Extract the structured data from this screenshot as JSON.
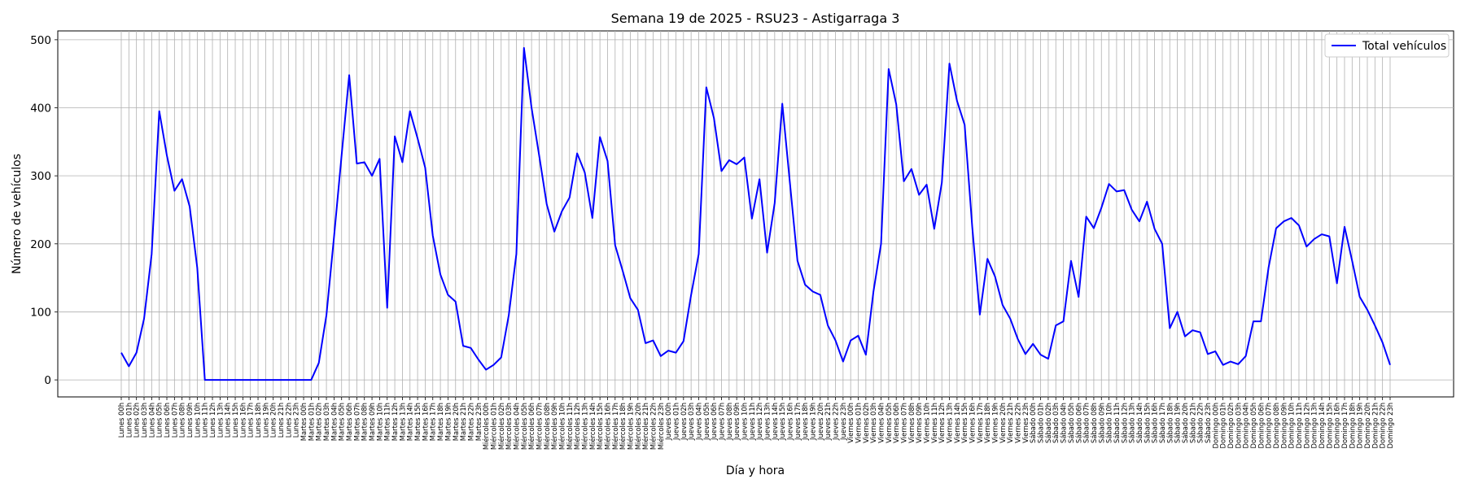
{
  "chart_data": {
    "type": "line",
    "title": "Semana 19 de 2025 - RSU23 - Astigarraga 3",
    "xlabel": "Día y hora",
    "ylabel": "Número de vehículos",
    "ylim": [
      -25,
      513
    ],
    "yticks": [
      0,
      100,
      200,
      300,
      400,
      500
    ],
    "grid": true,
    "legend_position": "top-right",
    "days": [
      "Lunes",
      "Martes",
      "Miércoles",
      "Jueves",
      "Viernes",
      "Sábado",
      "Domingo"
    ],
    "series": [
      {
        "name": "Total vehículos",
        "color": "#0000ff",
        "values": [
          40,
          20,
          40,
          90,
          185,
          395,
          330,
          278,
          295,
          255,
          165,
          0,
          0,
          0,
          0,
          0,
          0,
          0,
          0,
          0,
          0,
          0,
          0,
          0,
          0,
          0,
          25,
          95,
          210,
          330,
          448,
          318,
          320,
          300,
          325,
          106,
          358,
          320,
          395,
          355,
          312,
          212,
          155,
          125,
          115,
          50,
          47,
          30,
          15,
          22,
          33,
          95,
          185,
          488,
          400,
          330,
          258,
          218,
          248,
          268,
          333,
          305,
          238,
          357,
          322,
          198,
          160,
          120,
          103,
          54,
          58,
          35,
          43,
          40,
          57,
          125,
          185,
          430,
          385,
          307,
          323,
          317,
          327,
          237,
          295,
          187,
          260,
          406,
          290,
          175,
          140,
          130,
          125,
          80,
          58,
          27,
          58,
          65,
          37,
          130,
          200,
          457,
          405,
          292,
          310,
          272,
          287,
          222,
          290,
          465,
          410,
          375,
          225,
          96,
          178,
          152,
          110,
          90,
          60,
          38,
          53,
          37,
          31,
          80,
          86,
          175,
          122,
          240,
          223,
          253,
          288,
          277,
          279,
          250,
          233,
          262,
          222,
          200,
          76,
          100,
          64,
          73,
          70,
          38,
          42,
          22,
          27,
          23,
          35,
          86,
          86,
          165,
          223,
          233,
          238,
          227,
          196,
          207,
          214,
          211,
          142,
          225,
          175,
          122,
          103,
          80,
          55,
          22
        ]
      }
    ]
  }
}
